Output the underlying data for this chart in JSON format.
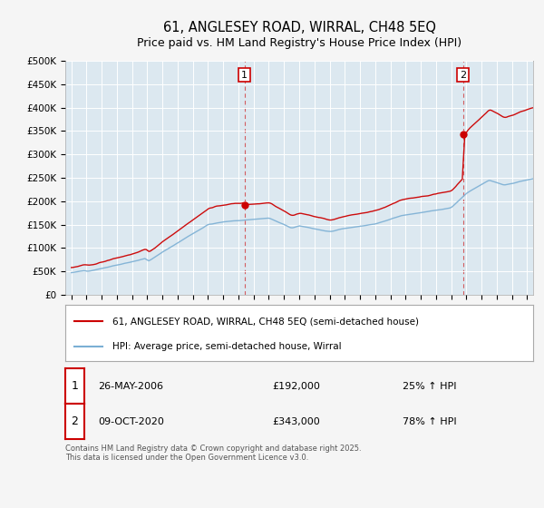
{
  "title": "61, ANGLESEY ROAD, WIRRAL, CH48 5EQ",
  "subtitle": "Price paid vs. HM Land Registry's House Price Index (HPI)",
  "ylim": [
    0,
    500000
  ],
  "yticks": [
    0,
    50000,
    100000,
    150000,
    200000,
    250000,
    300000,
    350000,
    400000,
    450000,
    500000
  ],
  "ytick_labels": [
    "£0",
    "£50K",
    "£100K",
    "£150K",
    "£200K",
    "£250K",
    "£300K",
    "£350K",
    "£400K",
    "£450K",
    "£500K"
  ],
  "sale_color": "#cc0000",
  "hpi_color": "#7bafd4",
  "marker1_x_year": 2006.4,
  "marker1_y": 192000,
  "marker2_x_year": 2020.78,
  "marker2_y": 343000,
  "marker1_label": "1",
  "marker2_label": "2",
  "marker1_date": "26-MAY-2006",
  "marker1_price": "£192,000",
  "marker1_pct": "25% ↑ HPI",
  "marker2_date": "09-OCT-2020",
  "marker2_price": "£343,000",
  "marker2_pct": "78% ↑ HPI",
  "legend_line1": "61, ANGLESEY ROAD, WIRRAL, CH48 5EQ (semi-detached house)",
  "legend_line2": "HPI: Average price, semi-detached house, Wirral",
  "footnote": "Contains HM Land Registry data © Crown copyright and database right 2025.\nThis data is licensed under the Open Government Licence v3.0.",
  "background_color": "#f5f5f5",
  "plot_bg_color": "#dce8f0",
  "grid_color": "#ffffff",
  "vline_color": "#cc0000",
  "xlim_left": 1994.6,
  "xlim_right": 2025.4
}
